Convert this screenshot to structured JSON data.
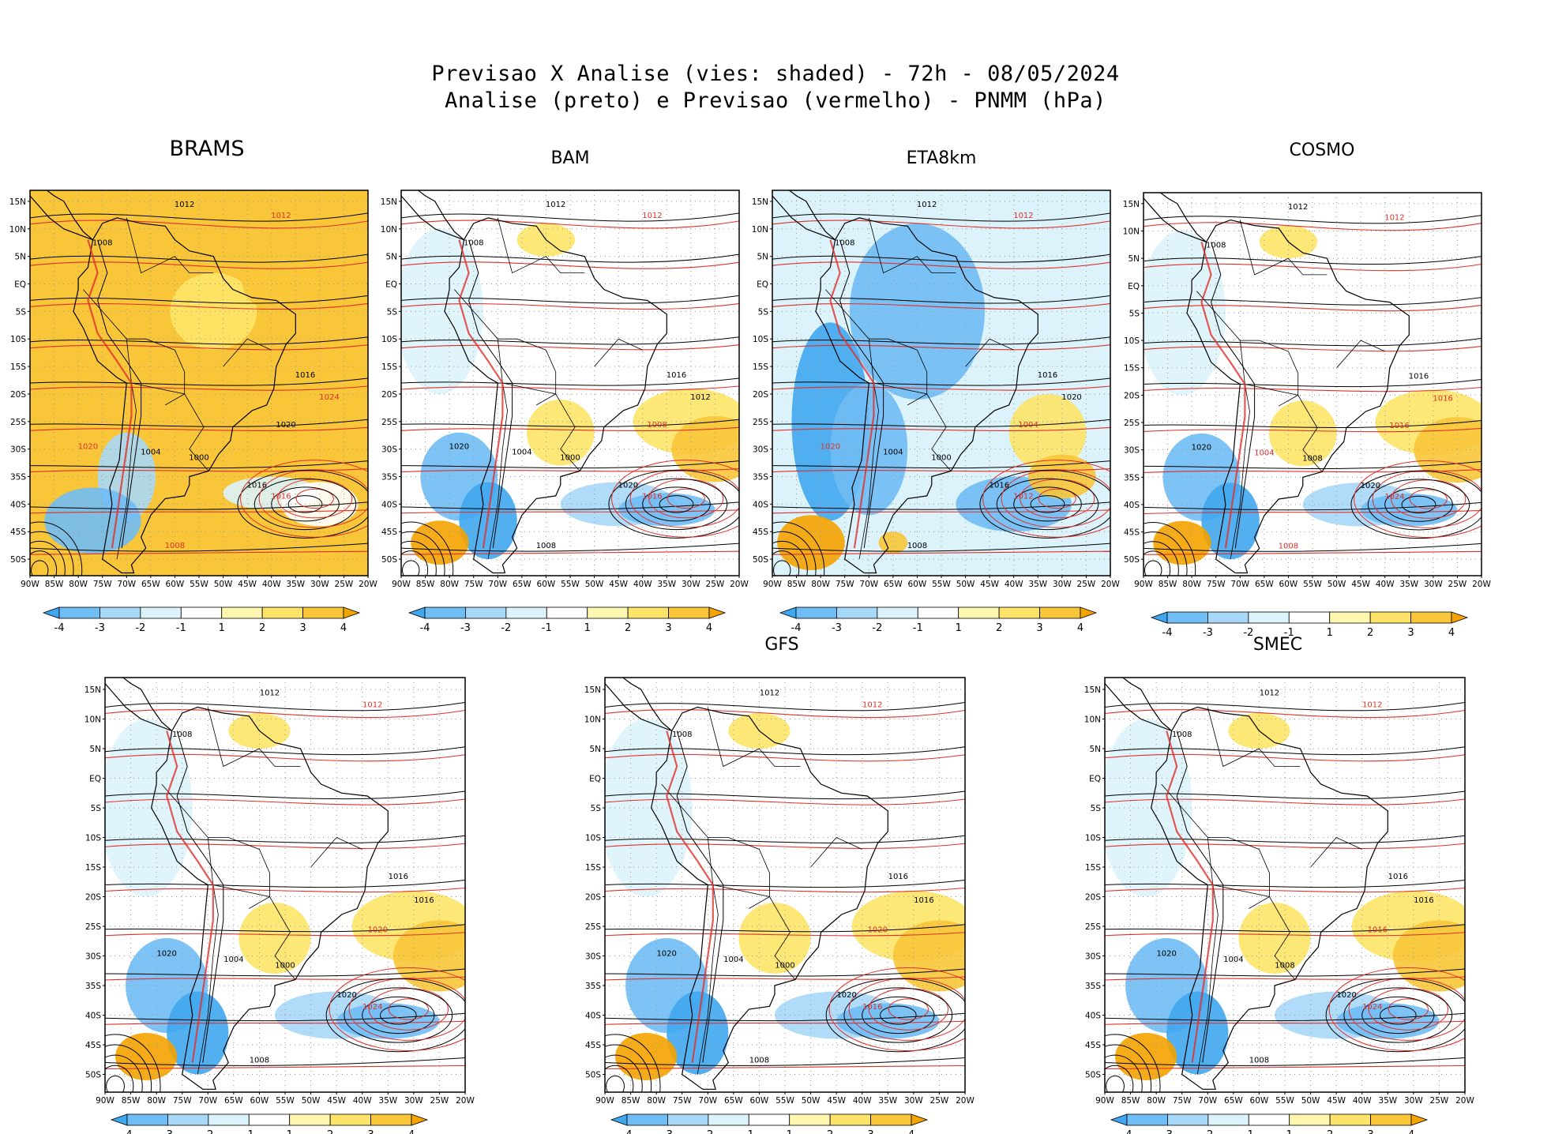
{
  "header": {
    "line1": "Previsao X Analise (vies: shaded) - 72h - 08/05/2024",
    "line2": "Analise (preto) e Previsao (vermelho) - PNMM (hPa)"
  },
  "axes": {
    "lat_labels": [
      "15N",
      "10N",
      "5N",
      "EQ",
      "5S",
      "10S",
      "15S",
      "20S",
      "25S",
      "30S",
      "35S",
      "40S",
      "45S",
      "50S"
    ],
    "lon_labels": [
      "90W",
      "85W",
      "80W",
      "75W",
      "70W",
      "65W",
      "60W",
      "55W",
      "50W",
      "45W",
      "40W",
      "35W",
      "30W",
      "25W",
      "20W"
    ]
  },
  "colorbar": {
    "labels": [
      "-4",
      "-3",
      "-2",
      "-1",
      "1",
      "2",
      "3",
      "4"
    ],
    "colors": [
      "#3fa7f0",
      "#6fbdf5",
      "#a8d8f8",
      "#dcf3fb",
      "#ffffff",
      "#fff7b0",
      "#fde468",
      "#f8c638",
      "#f5a300"
    ]
  },
  "colors": {
    "analysis": "#000000",
    "forecast": "#e0302a",
    "coast": "#000000"
  },
  "panels": [
    {
      "id": "brams",
      "title": "BRAMS",
      "bias": "warm-all",
      "isobars": [
        {
          "text": "1012",
          "color": "black"
        },
        {
          "text": "1008",
          "color": "black"
        },
        {
          "text": "1012",
          "color": "red"
        },
        {
          "text": "1016",
          "color": "black"
        },
        {
          "text": "1020",
          "color": "red"
        },
        {
          "text": "1020",
          "color": "black"
        },
        {
          "text": "1004",
          "color": "black"
        },
        {
          "text": "1000",
          "color": "black"
        },
        {
          "text": "1016",
          "color": "black"
        },
        {
          "text": "1016",
          "color": "red"
        },
        {
          "text": "1008",
          "color": "red"
        },
        {
          "text": "1024",
          "color": "red"
        }
      ]
    },
    {
      "id": "bam",
      "title": "BAM",
      "bias": "mixed",
      "isobars": [
        {
          "text": "1012",
          "color": "black"
        },
        {
          "text": "1008",
          "color": "black"
        },
        {
          "text": "1012",
          "color": "red"
        },
        {
          "text": "1016",
          "color": "black"
        },
        {
          "text": "1020",
          "color": "black"
        },
        {
          "text": "1008",
          "color": "red"
        },
        {
          "text": "1004",
          "color": "black"
        },
        {
          "text": "1000",
          "color": "black"
        },
        {
          "text": "1020",
          "color": "black"
        },
        {
          "text": "1016",
          "color": "red"
        },
        {
          "text": "1008",
          "color": "black"
        },
        {
          "text": "1012",
          "color": "black"
        }
      ]
    },
    {
      "id": "eta8km",
      "title": "ETA8km",
      "bias": "cold",
      "isobars": [
        {
          "text": "1012",
          "color": "black"
        },
        {
          "text": "1008",
          "color": "black"
        },
        {
          "text": "1012",
          "color": "red"
        },
        {
          "text": "1016",
          "color": "black"
        },
        {
          "text": "1020",
          "color": "red"
        },
        {
          "text": "1004",
          "color": "red"
        },
        {
          "text": "1004",
          "color": "black"
        },
        {
          "text": "1000",
          "color": "black"
        },
        {
          "text": "1016",
          "color": "black"
        },
        {
          "text": "1012",
          "color": "red"
        },
        {
          "text": "1008",
          "color": "black"
        },
        {
          "text": "1020",
          "color": "black"
        }
      ]
    },
    {
      "id": "cosmo",
      "title": "COSMO",
      "bias": "mixed",
      "isobars": [
        {
          "text": "1012",
          "color": "black"
        },
        {
          "text": "1008",
          "color": "black"
        },
        {
          "text": "1012",
          "color": "red"
        },
        {
          "text": "1016",
          "color": "black"
        },
        {
          "text": "1020",
          "color": "black"
        },
        {
          "text": "1016",
          "color": "red"
        },
        {
          "text": "1004",
          "color": "red"
        },
        {
          "text": "1008",
          "color": "black"
        },
        {
          "text": "1020",
          "color": "black"
        },
        {
          "text": "1024",
          "color": "red"
        },
        {
          "text": "1008",
          "color": "red"
        },
        {
          "text": "1016",
          "color": "red"
        }
      ]
    },
    {
      "id": "unlabeled",
      "title": "",
      "bias": "mixed",
      "isobars": [
        {
          "text": "1012",
          "color": "black"
        },
        {
          "text": "1008",
          "color": "black"
        },
        {
          "text": "1012",
          "color": "red"
        },
        {
          "text": "1016",
          "color": "black"
        },
        {
          "text": "1020",
          "color": "black"
        },
        {
          "text": "1020",
          "color": "red"
        },
        {
          "text": "1004",
          "color": "black"
        },
        {
          "text": "1000",
          "color": "black"
        },
        {
          "text": "1020",
          "color": "black"
        },
        {
          "text": "1024",
          "color": "red"
        },
        {
          "text": "1008",
          "color": "black"
        },
        {
          "text": "1016",
          "color": "black"
        }
      ]
    },
    {
      "id": "gfs",
      "title": "GFS",
      "bias": "mixed",
      "isobars": [
        {
          "text": "1012",
          "color": "black"
        },
        {
          "text": "1008",
          "color": "black"
        },
        {
          "text": "1012",
          "color": "red"
        },
        {
          "text": "1016",
          "color": "black"
        },
        {
          "text": "1020",
          "color": "black"
        },
        {
          "text": "1020",
          "color": "red"
        },
        {
          "text": "1004",
          "color": "black"
        },
        {
          "text": "1000",
          "color": "black"
        },
        {
          "text": "1020",
          "color": "black"
        },
        {
          "text": "1016",
          "color": "red"
        },
        {
          "text": "1008",
          "color": "black"
        },
        {
          "text": "1016",
          "color": "black"
        }
      ]
    },
    {
      "id": "smec",
      "title": "SMEC",
      "bias": "mixed",
      "isobars": [
        {
          "text": "1012",
          "color": "black"
        },
        {
          "text": "1008",
          "color": "black"
        },
        {
          "text": "1012",
          "color": "red"
        },
        {
          "text": "1016",
          "color": "black"
        },
        {
          "text": "1020",
          "color": "black"
        },
        {
          "text": "1016",
          "color": "red"
        },
        {
          "text": "1004",
          "color": "black"
        },
        {
          "text": "1008",
          "color": "black"
        },
        {
          "text": "1020",
          "color": "black"
        },
        {
          "text": "1024",
          "color": "red"
        },
        {
          "text": "1008",
          "color": "black"
        },
        {
          "text": "1016",
          "color": "black"
        }
      ]
    }
  ]
}
